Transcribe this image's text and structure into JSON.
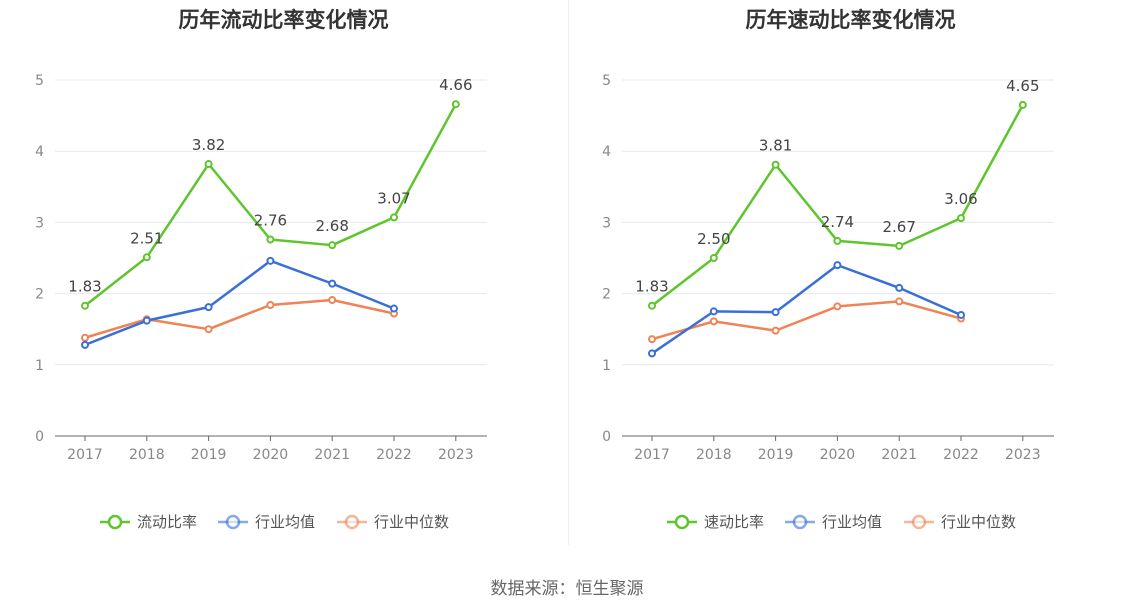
{
  "source_text": "数据来源：恒生聚源",
  "chart_data": [
    {
      "type": "line",
      "title": "历年流动比率变化情况",
      "x": [
        "2017",
        "2018",
        "2019",
        "2020",
        "2021",
        "2022",
        "2023"
      ],
      "ylim": [
        0,
        5
      ],
      "yticks": [
        "0",
        "1",
        "2",
        "3",
        "4",
        "5"
      ],
      "grid": true,
      "legend_position": "bottom-center",
      "series": [
        {
          "name": "流动比率",
          "color": "#5ec52d",
          "values": [
            1.83,
            2.51,
            3.82,
            2.76,
            2.68,
            3.07,
            4.66
          ],
          "labels": [
            "1.83",
            "2.51",
            "3.82",
            "2.76",
            "2.68",
            "3.07",
            "4.66"
          ]
        },
        {
          "name": "行业均值",
          "color": "#3a6fd8",
          "values": [
            1.28,
            1.62,
            1.81,
            2.46,
            2.14,
            1.79,
            null
          ]
        },
        {
          "name": "行业中位数",
          "color": "#ee8456",
          "values": [
            1.38,
            1.64,
            1.5,
            1.84,
            1.91,
            1.72,
            null
          ]
        }
      ]
    },
    {
      "type": "line",
      "title": "历年速动比率变化情况",
      "x": [
        "2017",
        "2018",
        "2019",
        "2020",
        "2021",
        "2022",
        "2023"
      ],
      "ylim": [
        0,
        5
      ],
      "yticks": [
        "0",
        "1",
        "2",
        "3",
        "4",
        "5"
      ],
      "grid": true,
      "legend_position": "bottom-center",
      "series": [
        {
          "name": "速动比率",
          "color": "#5ec52d",
          "values": [
            1.83,
            2.5,
            3.81,
            2.74,
            2.67,
            3.06,
            4.65
          ],
          "labels": [
            "1.83",
            "2.50",
            "3.81",
            "2.74",
            "2.67",
            "3.06",
            "4.65"
          ]
        },
        {
          "name": "行业均值",
          "color": "#3a6fd8",
          "values": [
            1.16,
            1.75,
            1.74,
            2.4,
            2.08,
            1.7,
            null
          ]
        },
        {
          "name": "行业中位数",
          "color": "#ee8456",
          "values": [
            1.36,
            1.61,
            1.48,
            1.82,
            1.89,
            1.65,
            null
          ]
        }
      ]
    }
  ]
}
